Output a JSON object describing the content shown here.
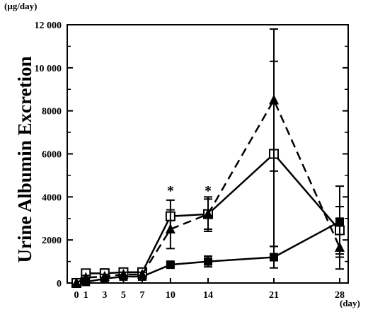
{
  "chart_data": {
    "type": "line",
    "ylabel": "Urine Albumin Excretion",
    "y_unit": "(µg/day)",
    "x_unit": "(day)",
    "xlim": [
      0,
      28
    ],
    "ylim": [
      0,
      12000
    ],
    "x_ticks": [
      0,
      1,
      3,
      5,
      7,
      10,
      14,
      21,
      28
    ],
    "x_tick_labels": [
      "0",
      "1",
      "3",
      "5",
      "7",
      "10",
      "14",
      "21",
      "28"
    ],
    "y_ticks": [
      0,
      2000,
      4000,
      6000,
      8000,
      10000,
      12000
    ],
    "y_tick_labels": [
      "0",
      "2000",
      "4000",
      "6000",
      "8000",
      "10 000",
      "12 000"
    ],
    "grid": false,
    "legend": "none",
    "annotations": [
      {
        "text": "*",
        "x": 10
      },
      {
        "text": "*",
        "x": 14
      }
    ],
    "series": [
      {
        "marker": "open-square",
        "line_style": "solid",
        "x": [
          0,
          1,
          3,
          5,
          7,
          10,
          14,
          21,
          28
        ],
        "y": [
          0,
          450,
          450,
          500,
          500,
          3100,
          3200,
          6000,
          2450
        ],
        "err": [
          0,
          150,
          200,
          150,
          100,
          750,
          800,
          4300,
          1100
        ]
      },
      {
        "marker": "filled-triangle",
        "line_style": "dashed",
        "x": [
          0,
          1,
          3,
          5,
          7,
          10,
          14,
          21,
          28
        ],
        "y": [
          0,
          250,
          300,
          400,
          400,
          2500,
          3200,
          8500,
          1650
        ],
        "err": [
          0,
          100,
          100,
          100,
          100,
          900,
          700,
          3300,
          1000
        ]
      },
      {
        "marker": "filled-square",
        "line_style": "solid",
        "x": [
          0,
          1,
          3,
          5,
          7,
          10,
          14,
          21,
          28
        ],
        "y": [
          0,
          50,
          200,
          300,
          300,
          850,
          1000,
          1200,
          2850
        ],
        "err": [
          0,
          50,
          80,
          100,
          100,
          100,
          250,
          500,
          1650
        ]
      }
    ]
  }
}
